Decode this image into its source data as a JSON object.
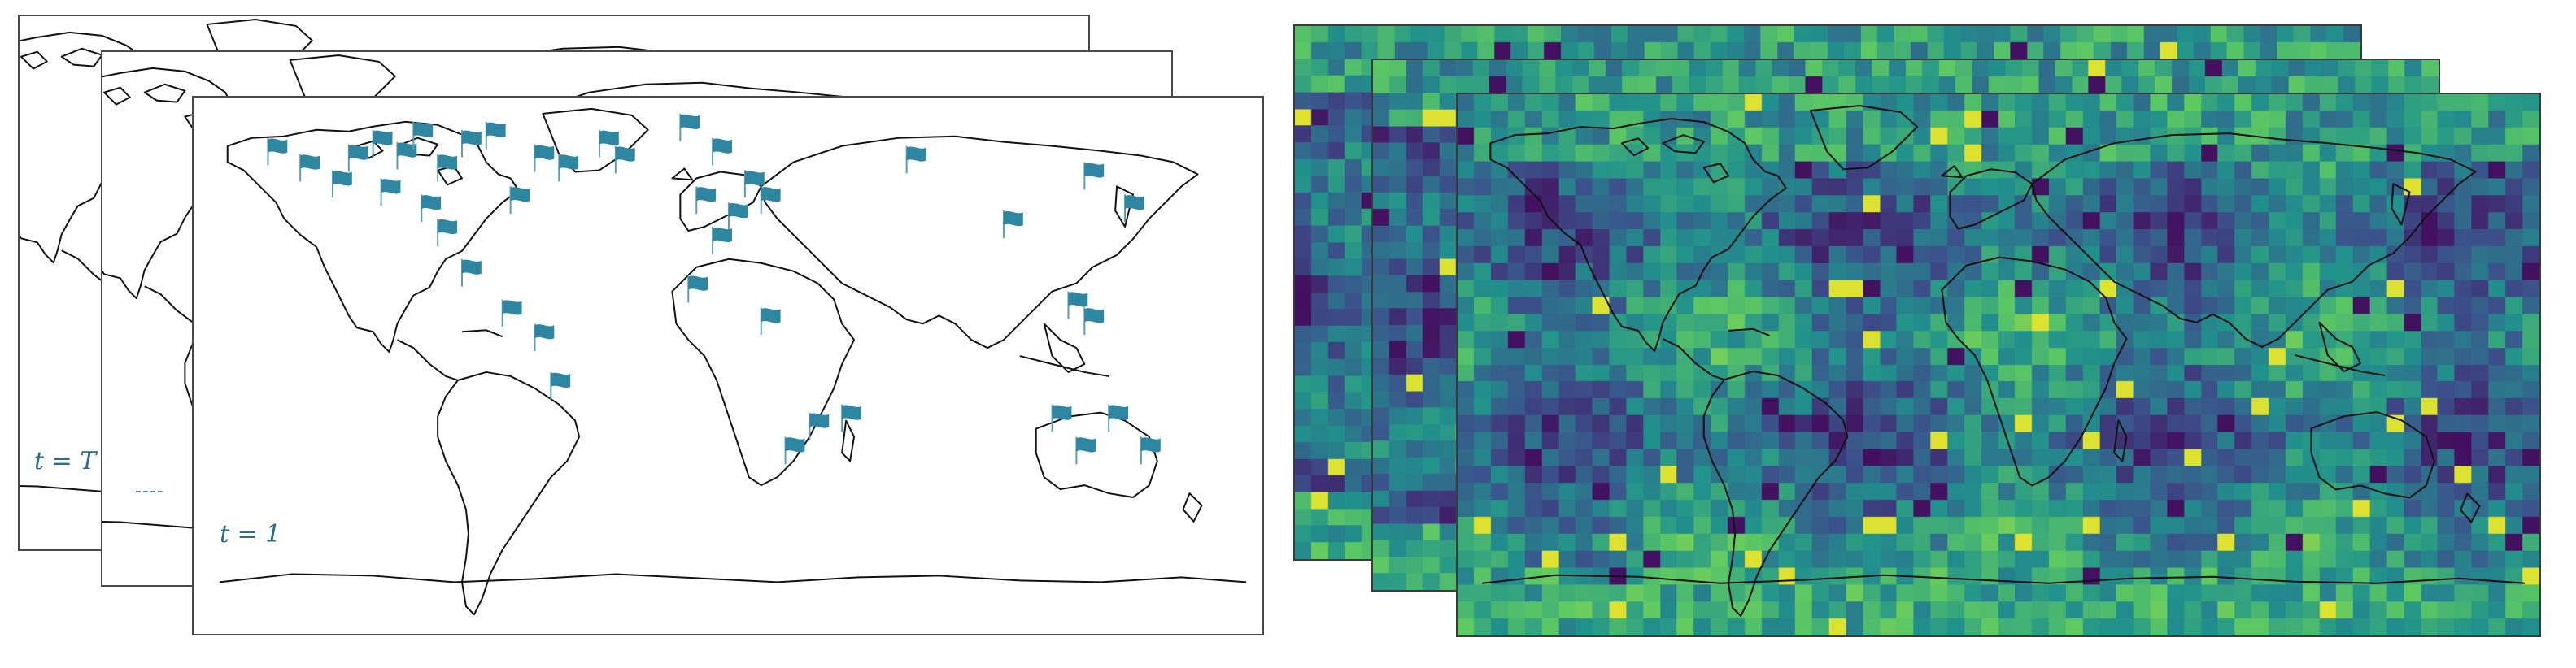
{
  "station_panels": {
    "back_label": "t = T",
    "middle_label": "----",
    "front_label": "t = 1",
    "flag_color": "#2e86a0"
  },
  "field_panels": {
    "colormap": [
      "#440154",
      "#3b528b",
      "#21918c",
      "#5ec962",
      "#fde725"
    ]
  }
}
